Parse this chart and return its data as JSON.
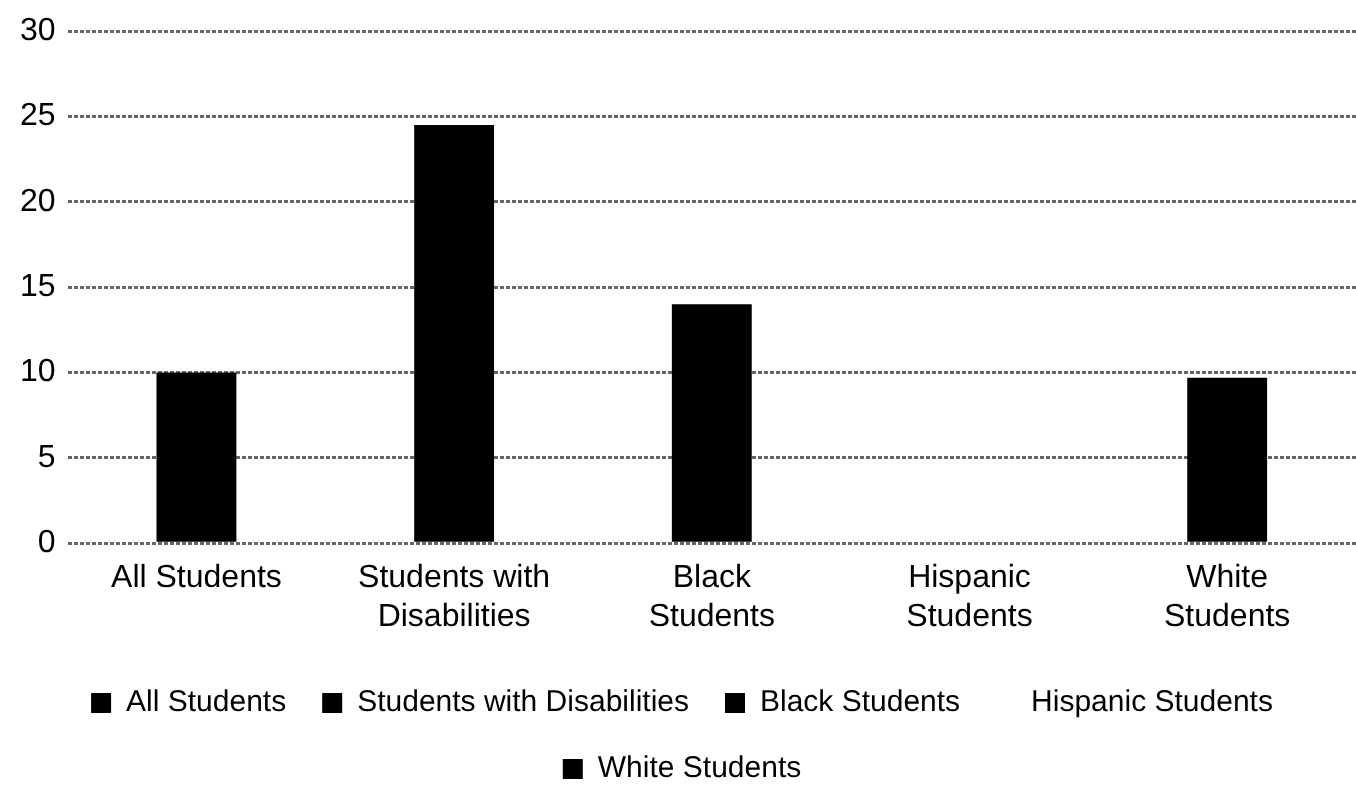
{
  "chart_data": {
    "type": "bar",
    "categories": [
      "All Students",
      "Students with Disabilities",
      "Black Students",
      "Hispanic Students",
      "White Students"
    ],
    "series": [
      {
        "name": "All Students",
        "color": "#000000",
        "values": [
          10,
          null,
          null,
          null,
          null
        ]
      },
      {
        "name": "Students with Disabilities",
        "color": "#000000",
        "values": [
          null,
          24.5,
          null,
          null,
          null
        ]
      },
      {
        "name": "Black Students",
        "color": "#000000",
        "values": [
          null,
          null,
          14,
          null,
          null
        ]
      },
      {
        "name": "Hispanic Students",
        "values": [
          null,
          null,
          null,
          null,
          null
        ]
      },
      {
        "name": "White Students",
        "color": "#000000",
        "values": [
          null,
          null,
          null,
          null,
          9.7
        ]
      }
    ],
    "ylim": [
      0,
      30
    ],
    "yticks": [
      0,
      5,
      10,
      15,
      20,
      25,
      30
    ],
    "grid": "y",
    "legend": "bottom"
  }
}
